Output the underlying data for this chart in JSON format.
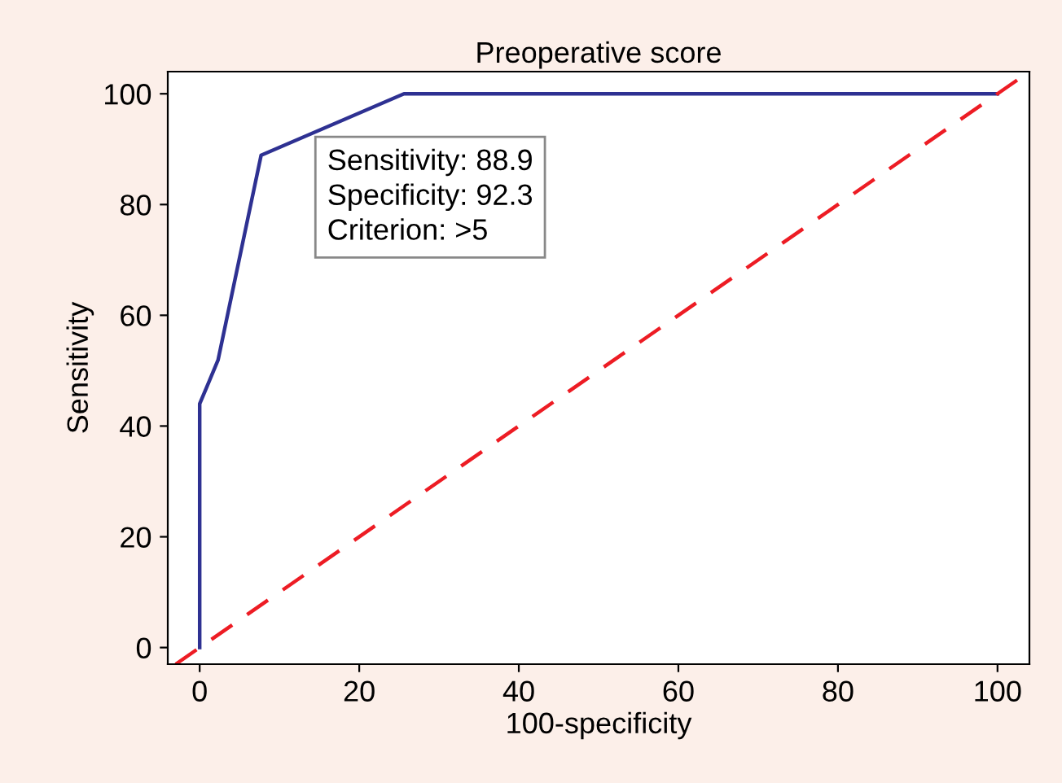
{
  "chart_data": {
    "type": "line",
    "title": "Preoperative score",
    "xlabel": "100-specificity",
    "ylabel": "Sensitivity",
    "series": [
      {
        "color": "#2e3192",
        "x": [
          0,
          0,
          2.3,
          7.7,
          25.6,
          100
        ],
        "values": [
          0,
          44,
          51.9,
          88.9,
          100,
          100
        ],
        "line_style": "solid"
      },
      {
        "type": "line",
        "color": "#ed1c24",
        "x": [
          -3,
          104
        ],
        "values": [
          -3,
          104
        ],
        "line_style": "dashed"
      }
    ],
    "xlim": [
      -4,
      104
    ],
    "ylim": [
      -3,
      104
    ],
    "xticks": [
      0,
      20,
      40,
      60,
      80,
      100
    ],
    "yticks": [
      0,
      20,
      40,
      60,
      80,
      100
    ],
    "annotations": [
      "Sensitivity: 88.9\nSpecificity: 92.3\nCriterion: >5"
    ],
    "grid": false,
    "legend": false,
    "marker": "none"
  }
}
